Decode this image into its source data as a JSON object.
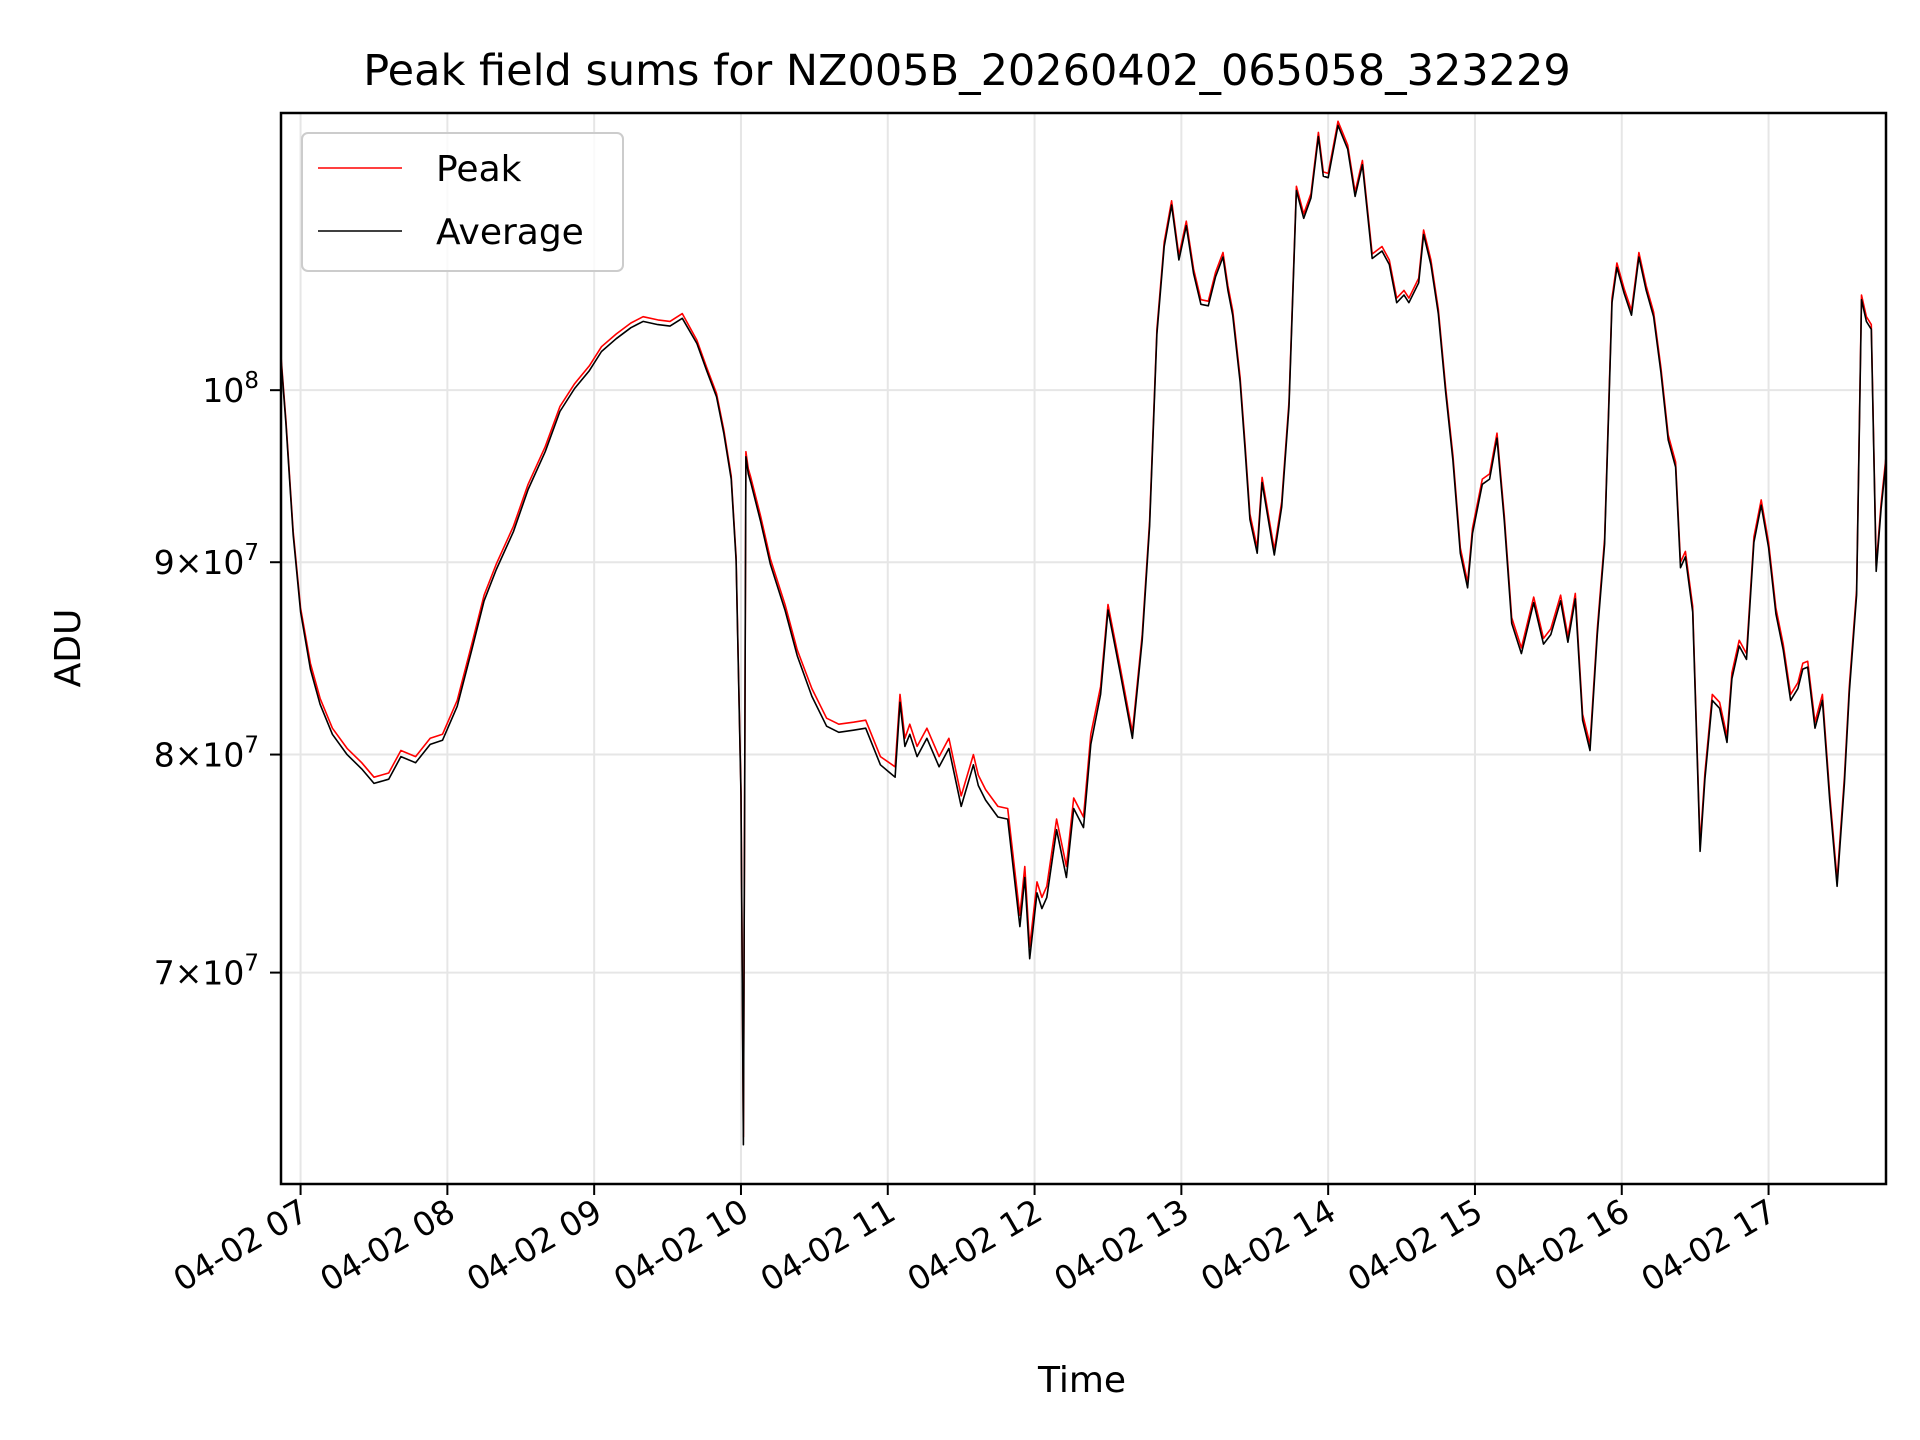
{
  "chart_data": {
    "type": "line",
    "title": "Peak field sums for NZ005B_20260402_065058_323229",
    "xlabel": "Time",
    "ylabel": "ADU",
    "yscale": "log",
    "ylim": [
      61500000,
      118500000
    ],
    "xlim": [
      "04-02 06:52",
      "04-02 17:48"
    ],
    "grid": true,
    "legend": "top-left",
    "x_ticks": [
      "04-02 07",
      "04-02 08",
      "04-02 09",
      "04-02 10",
      "04-02 11",
      "04-02 12",
      "04-02 13",
      "04-02 14",
      "04-02 15",
      "04-02 16",
      "04-02 17"
    ],
    "y_ticks": [
      {
        "value": 70000000,
        "mantissa": "7",
        "exp": "7"
      },
      {
        "value": 80000000,
        "mantissa": "8",
        "exp": "7"
      },
      {
        "value": 90000000,
        "mantissa": "9",
        "exp": "7"
      },
      {
        "value": 100000000,
        "mantissa": "",
        "exp": "8"
      }
    ],
    "x_times": [
      "06:52",
      "06:54",
      "06:57",
      "07:00",
      "07:04",
      "07:08",
      "07:13",
      "07:19",
      "07:25",
      "07:30",
      "07:36",
      "07:41",
      "07:47",
      "07:53",
      "07:58",
      "08:04",
      "08:10",
      "08:15",
      "08:20",
      "08:27",
      "08:33",
      "08:40",
      "08:46",
      "08:52",
      "08:58",
      "09:03",
      "09:09",
      "09:15",
      "09:20",
      "09:26",
      "09:31",
      "09:36",
      "09:42",
      "09:46",
      "09:50",
      "09:53",
      "09:56",
      "09:58",
      "10:00",
      "10:01",
      "10:02",
      "10:03",
      "10:04",
      "10:08",
      "10:12",
      "10:18",
      "10:23",
      "10:29",
      "10:35",
      "10:40",
      "10:46",
      "10:51",
      "10:57",
      "11:03",
      "11:05",
      "11:07",
      "11:09",
      "11:12",
      "11:16",
      "11:21",
      "11:25",
      "11:30",
      "11:35",
      "11:37",
      "11:40",
      "11:45",
      "11:49",
      "11:54",
      "11:56",
      "11:58",
      "12:01",
      "12:03",
      "12:05",
      "12:09",
      "12:13",
      "12:16",
      "12:20",
      "12:23",
      "12:27",
      "12:30",
      "12:35",
      "12:40",
      "12:44",
      "12:47",
      "12:50",
      "12:53",
      "12:56",
      "12:59",
      "13:02",
      "13:05",
      "13:08",
      "13:11",
      "13:14",
      "13:17",
      "13:19",
      "13:21",
      "13:24",
      "13:26",
      "13:28",
      "13:31",
      "13:33",
      "13:36",
      "13:38",
      "13:41",
      "13:44",
      "13:47",
      "13:50",
      "13:53",
      "13:56",
      "13:58",
      "14:00",
      "14:04",
      "14:08",
      "14:11",
      "14:14",
      "14:18",
      "14:22",
      "14:25",
      "14:28",
      "14:31",
      "14:33",
      "14:37",
      "14:39",
      "14:42",
      "14:45",
      "14:48",
      "14:51",
      "14:54",
      "14:57",
      "14:59",
      "15:03",
      "15:06",
      "15:09",
      "15:12",
      "15:15",
      "15:19",
      "15:24",
      "15:28",
      "15:31",
      "15:35",
      "15:38",
      "15:41",
      "15:44",
      "15:47",
      "15:50",
      "15:53",
      "15:56",
      "15:58",
      "16:01",
      "16:04",
      "16:07",
      "16:10",
      "16:13",
      "16:16",
      "16:19",
      "16:22",
      "16:24",
      "16:26",
      "16:29",
      "16:32",
      "16:34",
      "16:37",
      "16:40",
      "16:43",
      "16:45",
      "16:48",
      "16:51",
      "16:54",
      "16:57",
      "17:00",
      "17:03",
      "17:06",
      "17:09",
      "17:12",
      "17:14",
      "17:16",
      "17:19",
      "17:22",
      "17:25",
      "17:28",
      "17:31",
      "17:33",
      "17:36",
      "17:38",
      "17:40",
      "17:42",
      "17:44",
      "17:46",
      "17:48"
    ],
    "series": [
      {
        "name": "Average",
        "values": [
          101900000,
          98000000,
          91500000,
          87300000,
          84300000,
          82500000,
          81000000,
          80000000,
          79300000,
          78600000,
          78800000,
          79900000,
          79600000,
          80500000,
          80700000,
          82400000,
          85300000,
          87900000,
          89600000,
          91700000,
          94100000,
          96300000,
          98700000,
          100100000,
          101200000,
          102400000,
          103200000,
          103900000,
          104300000,
          104100000,
          104000000,
          104500000,
          102900000,
          101200000,
          99600000,
          97400000,
          94700000,
          90100000,
          78000000,
          63000000,
          96000000,
          95000000,
          94500000,
          92300000,
          89900000,
          87400000,
          85000000,
          82900000,
          81400000,
          81100000,
          81200000,
          81300000,
          79500000,
          78900000,
          82600000,
          80400000,
          81000000,
          79900000,
          80800000,
          79400000,
          80300000,
          77500000,
          79500000,
          78500000,
          77800000,
          77000000,
          76900000,
          72000000,
          74200000,
          70600000,
          73500000,
          72800000,
          73300000,
          76400000,
          74200000,
          77400000,
          76500000,
          80500000,
          83000000,
          87400000,
          84100000,
          80800000,
          85800000,
          92000000,
          103500000,
          109200000,
          112000000,
          108300000,
          110600000,
          107400000,
          105400000,
          105300000,
          107200000,
          108500000,
          106300000,
          104700000,
          100500000,
          96500000,
          92400000,
          90500000,
          94500000,
          92000000,
          90400000,
          93100000,
          99000000,
          113000000,
          111100000,
          112500000,
          116800000,
          114000000,
          113900000,
          117600000,
          115900000,
          112600000,
          114800000,
          108400000,
          108900000,
          108000000,
          105500000,
          106000000,
          105500000,
          106800000,
          110000000,
          108000000,
          104800000,
          99900000,
          95800000,
          90500000,
          88600000,
          91600000,
          94400000,
          94700000,
          97100000,
          92300000,
          86700000,
          85100000,
          87800000,
          85600000,
          86100000,
          87900000,
          85700000,
          88000000,
          81700000,
          80200000,
          86100000,
          91000000,
          105500000,
          107800000,
          106100000,
          104700000,
          108500000,
          106300000,
          104600000,
          101100000,
          97000000,
          95400000,
          89700000,
          90300000,
          87300000,
          75400000,
          78800000,
          82700000,
          82300000,
          80600000,
          83800000,
          85500000,
          84800000,
          91100000,
          93200000,
          90800000,
          87200000,
          85300000,
          82700000,
          83300000,
          84300000,
          84400000,
          81300000,
          82700000,
          77800000,
          73800000,
          78600000,
          83100000,
          88200000,
          105700000,
          104300000,
          103800000,
          89500000,
          93000000,
          95700000
        ]
      },
      {
        "name": "Peak",
        "values": [
          102100000,
          98200000,
          91700000,
          87500000,
          84600000,
          82800000,
          81300000,
          80300000,
          79600000,
          78900000,
          79100000,
          80200000,
          79900000,
          80800000,
          81000000,
          82700000,
          85600000,
          88200000,
          89900000,
          92000000,
          94400000,
          96600000,
          99000000,
          100400000,
          101500000,
          102700000,
          103500000,
          104200000,
          104600000,
          104400000,
          104300000,
          104800000,
          103100000,
          101400000,
          99800000,
          97600000,
          94900000,
          90300000,
          78200000,
          63300000,
          96300000,
          95300000,
          94800000,
          92600000,
          90200000,
          87700000,
          85300000,
          83300000,
          81800000,
          81500000,
          81600000,
          81700000,
          79900000,
          79400000,
          83000000,
          80800000,
          81500000,
          80400000,
          81300000,
          79900000,
          80800000,
          78000000,
          80000000,
          79000000,
          78300000,
          77500000,
          77400000,
          72500000,
          74700000,
          71100000,
          74000000,
          73300000,
          73800000,
          76900000,
          74700000,
          77900000,
          77000000,
          81000000,
          83400000,
          87700000,
          84400000,
          81100000,
          86100000,
          92300000,
          103800000,
          109500000,
          112300000,
          108600000,
          110900000,
          107700000,
          105700000,
          105600000,
          107500000,
          108800000,
          106600000,
          105000000,
          100800000,
          96800000,
          92700000,
          90800000,
          94800000,
          92300000,
          90700000,
          93400000,
          99300000,
          113300000,
          111400000,
          112800000,
          117100000,
          114300000,
          114200000,
          117900000,
          116200000,
          112900000,
          115100000,
          108700000,
          109200000,
          108300000,
          105800000,
          106300000,
          105800000,
          107100000,
          110300000,
          108300000,
          105100000,
          100200000,
          96100000,
          90800000,
          88900000,
          91900000,
          94700000,
          95000000,
          97400000,
          92600000,
          87000000,
          85400000,
          88100000,
          85900000,
          86400000,
          88200000,
          86000000,
          88300000,
          82000000,
          80500000,
          86400000,
          91300000,
          105800000,
          108100000,
          106400000,
          105000000,
          108800000,
          106600000,
          104900000,
          101400000,
          97300000,
          95700000,
          90000000,
          90600000,
          87600000,
          75700000,
          79100000,
          83000000,
          82600000,
          80900000,
          84100000,
          85800000,
          85100000,
          91400000,
          93500000,
          91100000,
          87500000,
          85600000,
          83000000,
          83600000,
          84600000,
          84700000,
          81600000,
          83000000,
          78100000,
          74100000,
          78900000,
          83400000,
          88500000,
          106000000,
          104600000,
          104100000,
          89800000,
          93300000,
          96000000
        ]
      }
    ],
    "series_colors": {
      "Peak": "#ff0000",
      "Average": "#000000"
    }
  }
}
